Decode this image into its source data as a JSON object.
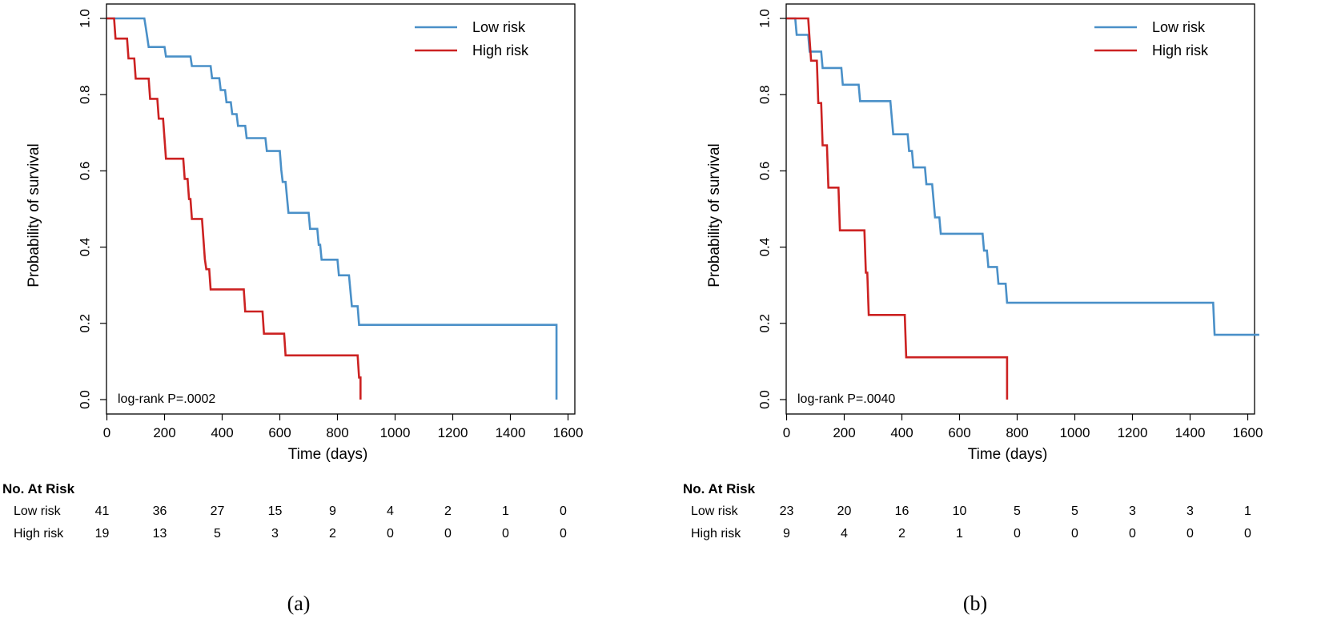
{
  "chart_data": [
    {
      "type": "line",
      "subtype": "kaplan-meier",
      "caption": "(a)",
      "xlabel": "Time (days)",
      "ylabel": "Probability of survival",
      "xlim": [
        0,
        1600
      ],
      "ylim": [
        0,
        1.0
      ],
      "x_ticks": [
        0,
        200,
        400,
        600,
        800,
        1000,
        1200,
        1400,
        1600
      ],
      "y_ticks": [
        "0.0",
        "0.2",
        "0.4",
        "0.6",
        "0.8",
        "1.0"
      ],
      "legend_position": "top-right",
      "annotation": "log-rank P=.0002",
      "series": [
        {
          "name": "Low risk",
          "color": "#4a90c8",
          "steps": [
            [
              0,
              1.0
            ],
            [
              130,
              1.0
            ],
            [
              135,
              0.976
            ],
            [
              140,
              0.951
            ],
            [
              145,
              0.925
            ],
            [
              200,
              0.925
            ],
            [
              205,
              0.9
            ],
            [
              290,
              0.9
            ],
            [
              295,
              0.875
            ],
            [
              360,
              0.875
            ],
            [
              365,
              0.843
            ],
            [
              390,
              0.843
            ],
            [
              395,
              0.812
            ],
            [
              410,
              0.812
            ],
            [
              415,
              0.78
            ],
            [
              430,
              0.78
            ],
            [
              435,
              0.749
            ],
            [
              450,
              0.749
            ],
            [
              455,
              0.718
            ],
            [
              480,
              0.718
            ],
            [
              485,
              0.686
            ],
            [
              550,
              0.686
            ],
            [
              555,
              0.652
            ],
            [
              600,
              0.652
            ],
            [
              605,
              0.603
            ],
            [
              610,
              0.571
            ],
            [
              620,
              0.571
            ],
            [
              625,
              0.53
            ],
            [
              630,
              0.49
            ],
            [
              700,
              0.49
            ],
            [
              705,
              0.448
            ],
            [
              730,
              0.448
            ],
            [
              735,
              0.406
            ],
            [
              740,
              0.406
            ],
            [
              745,
              0.367
            ],
            [
              800,
              0.367
            ],
            [
              805,
              0.326
            ],
            [
              840,
              0.326
            ],
            [
              845,
              0.285
            ],
            [
              850,
              0.245
            ],
            [
              870,
              0.245
            ],
            [
              875,
              0.196
            ],
            [
              1560,
              0.196
            ],
            [
              1560,
              0.0
            ]
          ]
        },
        {
          "name": "High risk",
          "color": "#cc2222",
          "steps": [
            [
              0,
              1.0
            ],
            [
              25,
              1.0
            ],
            [
              30,
              0.947
            ],
            [
              70,
              0.947
            ],
            [
              75,
              0.895
            ],
            [
              95,
              0.895
            ],
            [
              100,
              0.842
            ],
            [
              145,
              0.842
            ],
            [
              150,
              0.789
            ],
            [
              175,
              0.789
            ],
            [
              180,
              0.737
            ],
            [
              195,
              0.737
            ],
            [
              200,
              0.684
            ],
            [
              205,
              0.632
            ],
            [
              265,
              0.632
            ],
            [
              270,
              0.579
            ],
            [
              280,
              0.579
            ],
            [
              285,
              0.526
            ],
            [
              290,
              0.526
            ],
            [
              295,
              0.474
            ],
            [
              330,
              0.474
            ],
            [
              335,
              0.421
            ],
            [
              340,
              0.368
            ],
            [
              345,
              0.342
            ],
            [
              355,
              0.342
            ],
            [
              360,
              0.289
            ],
            [
              475,
              0.289
            ],
            [
              480,
              0.231
            ],
            [
              540,
              0.231
            ],
            [
              545,
              0.173
            ],
            [
              615,
              0.173
            ],
            [
              620,
              0.116
            ],
            [
              870,
              0.116
            ],
            [
              875,
              0.058
            ],
            [
              880,
              0.058
            ],
            [
              880,
              0.0
            ]
          ]
        }
      ],
      "at_risk": {
        "title": "No. At Risk",
        "times": [
          0,
          200,
          400,
          600,
          800,
          1000,
          1200,
          1400,
          1600
        ],
        "rows": [
          {
            "label": "Low risk",
            "values": [
              "41",
              "36",
              "27",
              "15",
              "9",
              "4",
              "2",
              "1",
              "0"
            ]
          },
          {
            "label": "High risk",
            "values": [
              "19",
              "13",
              "5",
              "3",
              "2",
              "0",
              "0",
              "0",
              "0"
            ]
          }
        ]
      }
    },
    {
      "type": "line",
      "subtype": "kaplan-meier",
      "caption": "(b)",
      "xlabel": "Time (days)",
      "ylabel": "Probability of survival",
      "xlim": [
        0,
        1600
      ],
      "ylim": [
        0,
        1.0
      ],
      "x_ticks": [
        0,
        200,
        400,
        600,
        800,
        1000,
        1200,
        1400,
        1600
      ],
      "y_ticks": [
        "0.0",
        "0.2",
        "0.4",
        "0.6",
        "0.8",
        "1.0"
      ],
      "legend_position": "top-right",
      "annotation": "log-rank P=.0040",
      "series": [
        {
          "name": "Low risk",
          "color": "#4a90c8",
          "steps": [
            [
              0,
              1.0
            ],
            [
              30,
              1.0
            ],
            [
              35,
              0.957
            ],
            [
              75,
              0.957
            ],
            [
              80,
              0.913
            ],
            [
              120,
              0.913
            ],
            [
              125,
              0.87
            ],
            [
              190,
              0.87
            ],
            [
              195,
              0.826
            ],
            [
              250,
              0.826
            ],
            [
              255,
              0.783
            ],
            [
              360,
              0.783
            ],
            [
              365,
              0.739
            ],
            [
              370,
              0.696
            ],
            [
              420,
              0.696
            ],
            [
              425,
              0.652
            ],
            [
              435,
              0.652
            ],
            [
              440,
              0.609
            ],
            [
              480,
              0.609
            ],
            [
              485,
              0.565
            ],
            [
              505,
              0.565
            ],
            [
              510,
              0.522
            ],
            [
              515,
              0.478
            ],
            [
              530,
              0.478
            ],
            [
              535,
              0.435
            ],
            [
              680,
              0.435
            ],
            [
              685,
              0.391
            ],
            [
              695,
              0.391
            ],
            [
              700,
              0.348
            ],
            [
              730,
              0.348
            ],
            [
              735,
              0.304
            ],
            [
              760,
              0.304
            ],
            [
              765,
              0.254
            ],
            [
              1480,
              0.254
            ],
            [
              1485,
              0.17
            ],
            [
              1640,
              0.17
            ]
          ]
        },
        {
          "name": "High risk",
          "color": "#cc2222",
          "steps": [
            [
              0,
              1.0
            ],
            [
              75,
              1.0
            ],
            [
              80,
              0.944
            ],
            [
              85,
              0.889
            ],
            [
              105,
              0.889
            ],
            [
              110,
              0.778
            ],
            [
              120,
              0.778
            ],
            [
              125,
              0.667
            ],
            [
              140,
              0.667
            ],
            [
              145,
              0.556
            ],
            [
              180,
              0.556
            ],
            [
              185,
              0.444
            ],
            [
              270,
              0.444
            ],
            [
              275,
              0.333
            ],
            [
              280,
              0.333
            ],
            [
              285,
              0.222
            ],
            [
              410,
              0.222
            ],
            [
              415,
              0.111
            ],
            [
              765,
              0.111
            ],
            [
              765,
              0.0
            ]
          ]
        }
      ],
      "at_risk": {
        "title": "No. At Risk",
        "times": [
          0,
          200,
          400,
          600,
          800,
          1000,
          1200,
          1400,
          1600
        ],
        "rows": [
          {
            "label": "Low risk",
            "values": [
              "23",
              "20",
              "16",
              "10",
              "5",
              "5",
              "3",
              "3",
              "1"
            ]
          },
          {
            "label": "High risk",
            "values": [
              "9",
              "4",
              "2",
              "1",
              "0",
              "0",
              "0",
              "0",
              "0"
            ]
          }
        ]
      }
    }
  ]
}
